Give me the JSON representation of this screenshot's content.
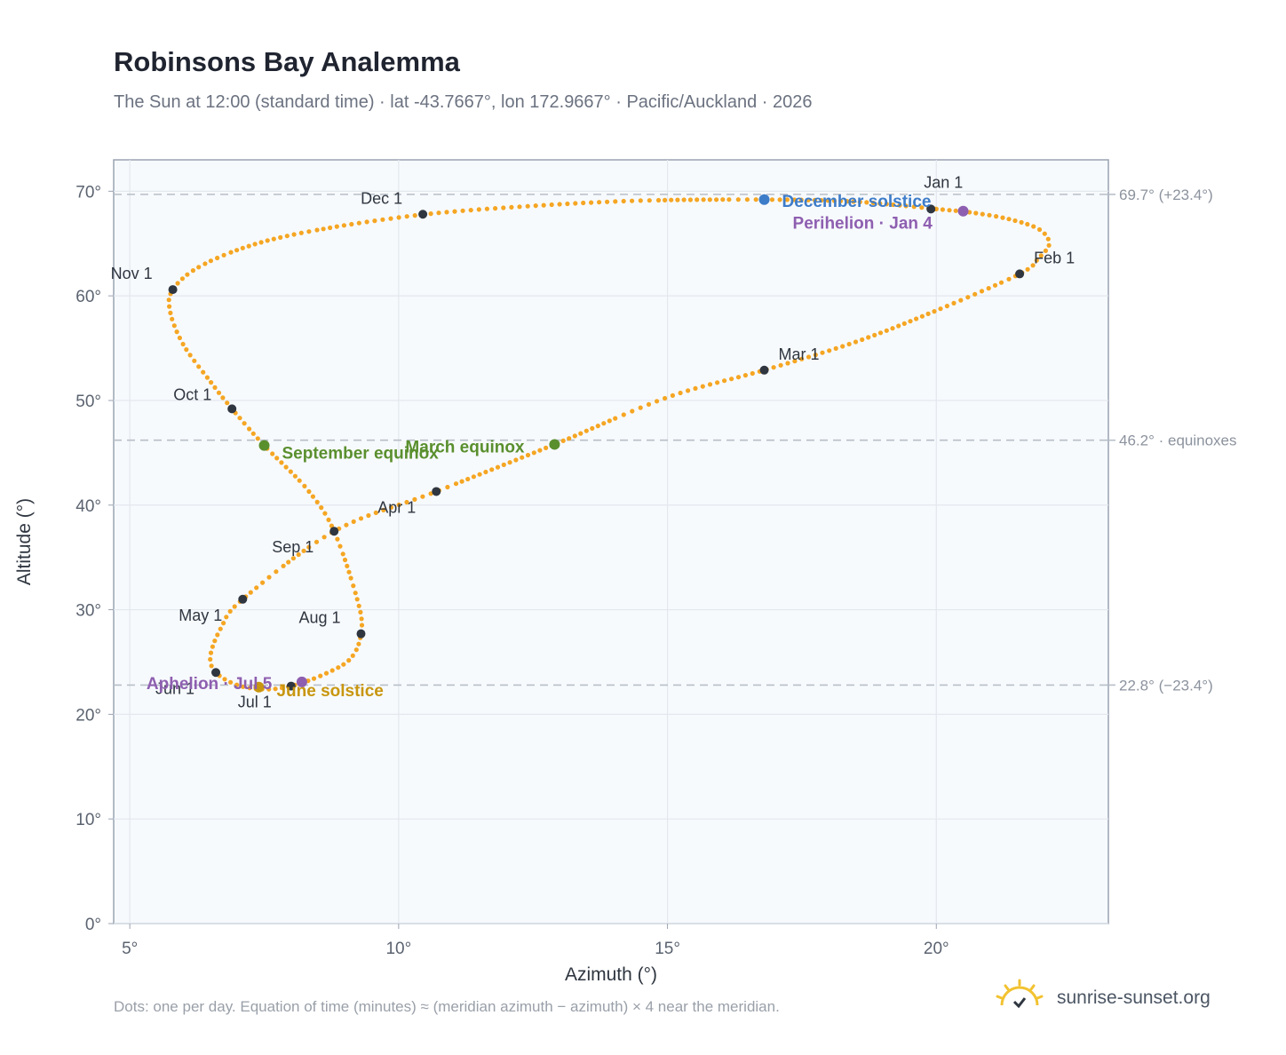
{
  "title": "Robinsons Bay Analemma",
  "subtitle": "The Sun at 12:00 (standard time) · lat -43.7667°, lon 172.9667° · Pacific/Auckland · 2026",
  "footnote": "Dots: one per day. Equation of time (minutes) ≈ (meridian azimuth − azimuth) × 4 near the meridian.",
  "brand": {
    "text": "sunrise-sunset.org",
    "icon": "sun-logo-icon"
  },
  "colors": {
    "curve": "#f5a623",
    "month_dot": "#2f3640",
    "equinox": "#5a8f2e",
    "december_solstice": "#3d7cc9",
    "june_solstice": "#c8960f",
    "apsis": "#8e5fb0",
    "plot_bg": "#f7fafd",
    "grid": "#e3e8ee",
    "ref_line": "#b8bfc8"
  },
  "chart_data": {
    "type": "scatter",
    "xlabel": "Azimuth (°)",
    "ylabel": "Altitude (°)",
    "xlim": [
      4.7,
      23.2
    ],
    "ylim": [
      0,
      73
    ],
    "xticks": [
      5,
      10,
      15,
      20
    ],
    "xtick_labels": [
      "5°",
      "10°",
      "15°",
      "20°"
    ],
    "yticks": [
      0,
      10,
      20,
      30,
      40,
      50,
      60,
      70
    ],
    "ytick_labels": [
      "0°",
      "10°",
      "20°",
      "30°",
      "40°",
      "50°",
      "60°",
      "70°"
    ],
    "grid": true,
    "series": [
      {
        "path": [
          [
            20.0,
            68.3
          ],
          [
            20.6,
            68.0
          ],
          [
            21.3,
            67.4
          ],
          [
            21.9,
            66.4
          ],
          [
            22.1,
            65.0
          ],
          [
            21.9,
            63.6
          ],
          [
            21.55,
            62.1
          ],
          [
            20.0,
            58.6
          ],
          [
            18.5,
            55.6
          ],
          [
            16.8,
            52.9
          ],
          [
            15.0,
            50.3
          ],
          [
            12.9,
            45.8
          ],
          [
            10.7,
            41.3
          ],
          [
            8.8,
            37.5
          ],
          [
            7.1,
            31.0
          ],
          [
            6.7,
            28.3
          ],
          [
            6.5,
            25.6
          ],
          [
            6.6,
            24.0
          ],
          [
            7.0,
            22.8
          ],
          [
            7.5,
            22.4
          ],
          [
            8.0,
            22.7
          ],
          [
            8.6,
            23.8
          ],
          [
            9.1,
            25.3
          ],
          [
            9.3,
            27.7
          ],
          [
            9.25,
            30.6
          ],
          [
            8.8,
            37.5
          ],
          [
            8.3,
            41.5
          ],
          [
            7.5,
            45.7
          ],
          [
            6.9,
            49.2
          ],
          [
            6.5,
            51.8
          ],
          [
            6.0,
            55.3
          ],
          [
            5.75,
            58.5
          ],
          [
            5.8,
            60.6
          ],
          [
            6.3,
            62.8
          ],
          [
            7.3,
            64.9
          ],
          [
            8.6,
            66.4
          ],
          [
            10.5,
            67.8
          ],
          [
            12.5,
            68.6
          ],
          [
            14.5,
            69.1
          ],
          [
            16.8,
            69.2
          ],
          [
            18.5,
            69.0
          ],
          [
            20.0,
            68.3
          ]
        ]
      }
    ],
    "month_markers": [
      {
        "label": "Jan 1",
        "x": 19.9,
        "y": 68.3
      },
      {
        "label": "Feb 1",
        "x": 21.55,
        "y": 62.1
      },
      {
        "label": "Mar 1",
        "x": 16.8,
        "y": 52.9
      },
      {
        "label": "Apr 1",
        "x": 10.7,
        "y": 41.3
      },
      {
        "label": "May 1",
        "x": 7.1,
        "y": 31.0
      },
      {
        "label": "Jun 1",
        "x": 6.6,
        "y": 24.0
      },
      {
        "label": "Jul 1",
        "x": 8.0,
        "y": 22.7
      },
      {
        "label": "Aug 1",
        "x": 9.3,
        "y": 27.7
      },
      {
        "label": "Sep 1",
        "x": 8.8,
        "y": 37.5
      },
      {
        "label": "Oct 1",
        "x": 6.9,
        "y": 49.2
      },
      {
        "label": "Nov 1",
        "x": 5.8,
        "y": 60.6
      },
      {
        "label": "Dec 1",
        "x": 10.45,
        "y": 67.8
      }
    ],
    "events": [
      {
        "label": "December solstice",
        "x": 16.8,
        "y": 69.2,
        "kind": "december_solstice"
      },
      {
        "label": "Perihelion · Jan 4",
        "x": 20.5,
        "y": 68.1,
        "kind": "apsis"
      },
      {
        "label": "March equinox",
        "x": 12.9,
        "y": 45.8,
        "kind": "equinox"
      },
      {
        "label": "September equinox",
        "x": 7.5,
        "y": 45.7,
        "kind": "equinox"
      },
      {
        "label": "June solstice",
        "x": 7.4,
        "y": 22.6,
        "kind": "june_solstice"
      },
      {
        "label": "Aphelion · Jul 5",
        "x": 8.2,
        "y": 23.1,
        "kind": "apsis"
      }
    ],
    "reference_lines": [
      {
        "y": 69.7,
        "label": "69.7° (+23.4°)"
      },
      {
        "y": 46.2,
        "label": "46.2° · equinoxes"
      },
      {
        "y": 22.8,
        "label": "22.8° (−23.4°)"
      }
    ]
  }
}
